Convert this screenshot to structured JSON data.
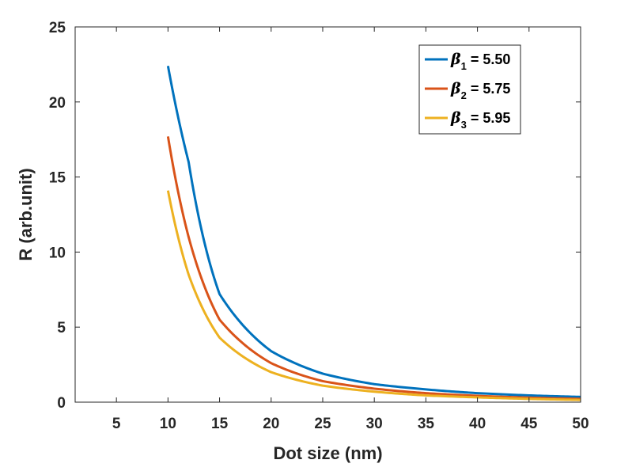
{
  "chart_data": {
    "type": "line",
    "xlabel": "Dot size (nm)",
    "ylabel": "R (arb.unit)",
    "xlim": [
      1,
      50
    ],
    "ylim": [
      0,
      25
    ],
    "xticks": [
      5,
      10,
      15,
      20,
      25,
      30,
      35,
      40,
      45,
      50
    ],
    "yticks": [
      0,
      5,
      10,
      15,
      20,
      25
    ],
    "grid": false,
    "legend_position": "top-right",
    "x": [
      10,
      12,
      15,
      20,
      25,
      30,
      35,
      40,
      45,
      50
    ],
    "series": [
      {
        "name": "β1 = 5.50",
        "symbol": "β",
        "subscript": "1",
        "value_text": " = 5.50",
        "color": "#0072BD",
        "y": [
          22.4,
          16.0,
          7.2,
          3.4,
          1.9,
          1.2,
          0.85,
          0.6,
          0.45,
          0.35
        ]
      },
      {
        "name": "β2 = 5.75",
        "symbol": "β",
        "subscript": "2",
        "value_text": " = 5.75",
        "color": "#D95319",
        "y": [
          17.7,
          11.0,
          5.5,
          2.6,
          1.4,
          0.9,
          0.6,
          0.42,
          0.3,
          0.22
        ]
      },
      {
        "name": "β3 = 5.95",
        "symbol": "β",
        "subscript": "3",
        "value_text": " = 5.95",
        "color": "#EDB120",
        "y": [
          14.1,
          8.5,
          4.3,
          2.0,
          1.1,
          0.7,
          0.45,
          0.32,
          0.22,
          0.15
        ]
      }
    ]
  }
}
